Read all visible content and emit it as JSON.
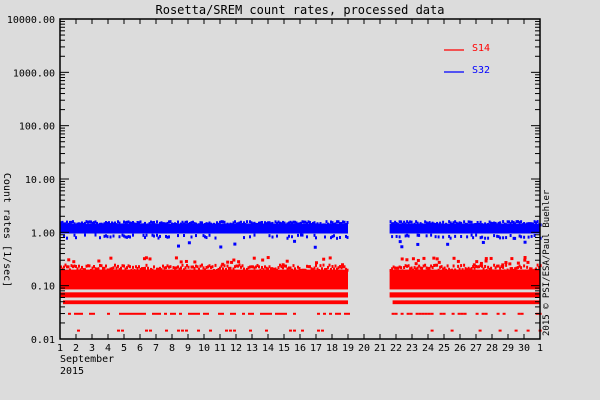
{
  "chart_data": {
    "type": "scatter",
    "title": "Rosetta/SREM count rates, processed data",
    "xlabel": "September 2015",
    "ylabel": "Count rates [1/sec]",
    "yscale": "log",
    "ylim": [
      0.01,
      10000
    ],
    "xlim": [
      1,
      31
    ],
    "y_tick_labels": [
      "10000.00",
      "1000.00",
      "100.00",
      "10.00",
      "1.00",
      "0.10",
      "0.01"
    ],
    "y_tick_values": [
      10000,
      1000,
      100,
      10,
      1,
      0.1,
      0.01
    ],
    "x_tick_labels": [
      "1",
      "2",
      "3",
      "4",
      "5",
      "6",
      "7",
      "8",
      "9",
      "10",
      "11",
      "12",
      "13",
      "14",
      "15",
      "16",
      "17",
      "18",
      "19",
      "20",
      "21",
      "22",
      "23",
      "24",
      "25",
      "26",
      "27",
      "28",
      "29",
      "30",
      "1"
    ],
    "x_sublabels": [
      "September",
      "2015"
    ],
    "legend": {
      "position": "upper right",
      "entries": [
        {
          "name": "S14",
          "color": "#ff0000"
        },
        {
          "name": "S32",
          "color": "#0000ff"
        }
      ]
    },
    "data_gaps": [
      [
        19.0,
        21.6
      ]
    ],
    "series": [
      {
        "name": "S14",
        "color": "#ff0000",
        "typical_band": [
          0.04,
          0.25
        ],
        "discrete_levels": [
          0.05,
          0.06,
          0.03,
          0.015
        ],
        "segments": [
          [
            1.0,
            19.0
          ],
          [
            21.6,
            31.0
          ]
        ]
      },
      {
        "name": "S32",
        "color": "#0000ff",
        "typical_band": [
          0.85,
          1.6
        ],
        "typical_value": 1.2,
        "segments": [
          [
            1.0,
            19.0
          ],
          [
            21.6,
            31.0
          ]
        ]
      }
    ],
    "grid": false
  },
  "credit": "2015 © PSI/ESA/Paul Buehler"
}
